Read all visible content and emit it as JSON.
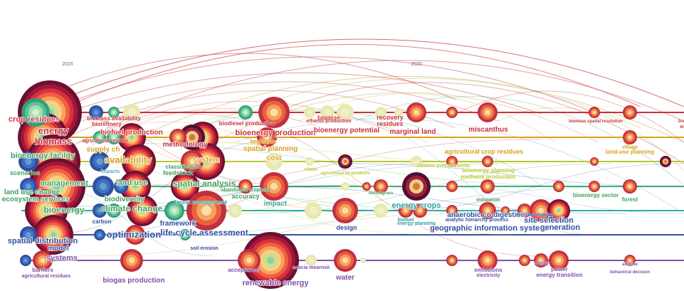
{
  "years": [
    {
      "label": "2015"
    },
    {
      "label": "2020"
    }
  ],
  "lanes": [
    {
      "color": "#c8323c"
    },
    {
      "color": "#e0a020"
    },
    {
      "color": "#b8c830"
    },
    {
      "color": "#40b070"
    },
    {
      "color": "#30b0a0"
    },
    {
      "color": "#3050a0"
    },
    {
      "color": "#8050a8"
    }
  ],
  "keywords": [
    {
      "text": "crop residues",
      "color": "#c8323c"
    },
    {
      "text": "energy",
      "color": "#c8323c"
    },
    {
      "text": "biomass",
      "color": "#c8323c"
    },
    {
      "text": "biomass availability",
      "color": "#c8323c"
    },
    {
      "text": "biorefinery",
      "color": "#c8323c"
    },
    {
      "text": "biofuel production",
      "color": "#c8323c"
    },
    {
      "text": "agricultural residue",
      "color": "#c8323c"
    },
    {
      "text": "supply ch",
      "color": "#d8a020"
    },
    {
      "text": "availability",
      "color": "#d8a020"
    },
    {
      "text": "impacts",
      "color": "#60a0d0"
    },
    {
      "text": "bioenergy facility",
      "color": "#40a060"
    },
    {
      "text": "scenarios",
      "color": "#40a060"
    },
    {
      "text": "management",
      "color": "#40a060"
    },
    {
      "text": "land use change",
      "color": "#40a060"
    },
    {
      "text": "ecosystem services",
      "color": "#40a060"
    },
    {
      "text": "land use",
      "color": "#40a060"
    },
    {
      "text": "biodiversity",
      "color": "#40a060"
    },
    {
      "text": "climate change",
      "color": "#40a060"
    },
    {
      "text": "bioenergy",
      "color": "#40a060"
    },
    {
      "text": "carbon",
      "color": "#3050a0"
    },
    {
      "text": "optimization",
      "color": "#3050a0"
    },
    {
      "text": "spatial distribution",
      "color": "#3050a0"
    },
    {
      "text": "model",
      "color": "#3050a0"
    },
    {
      "text": "systems",
      "color": "#8050a8"
    },
    {
      "text": "barriers",
      "color": "#8050a8"
    },
    {
      "text": "agricultural residues",
      "color": "#8050a8"
    },
    {
      "text": "methodology",
      "color": "#c8323c"
    },
    {
      "text": "system",
      "color": "#d8a020"
    },
    {
      "text": "classification",
      "color": "#40a060"
    },
    {
      "text": "feedstock",
      "color": "#40a060"
    },
    {
      "text": "spatial analysis",
      "color": "#40a060"
    },
    {
      "text": "forest management",
      "color": "#30a0a0"
    },
    {
      "text": "framework",
      "color": "#3050a0"
    },
    {
      "text": "life-cycle assessment",
      "color": "#3050a0"
    },
    {
      "text": "soil erosion",
      "color": "#3050a0"
    },
    {
      "text": "biogas production",
      "color": "#8050a8"
    },
    {
      "text": "biodiesel production",
      "color": "#c8323c"
    },
    {
      "text": "bioenergy production",
      "color": "#c8323c"
    },
    {
      "text": "logistics",
      "color": "#d8a020"
    },
    {
      "text": "spatial planning",
      "color": "#d8a020"
    },
    {
      "text": "cost",
      "color": "#d8a020"
    },
    {
      "text": "abandoned cropland",
      "color": "#40a060"
    },
    {
      "text": "accuracy",
      "color": "#40a060"
    },
    {
      "text": "impact",
      "color": "#30a0a0"
    },
    {
      "text": "acceptance",
      "color": "#8050a8"
    },
    {
      "text": "renewable energy",
      "color": "#8050a8"
    },
    {
      "text": "acacia mearnsii",
      "color": "#8050a8"
    },
    {
      "text": "water",
      "color": "#8050a8"
    },
    {
      "text": "bagasse",
      "color": "#c8323c"
    },
    {
      "text": "ethanol production",
      "color": "#c8323c"
    },
    {
      "text": "bioenergy potential",
      "color": "#c8323c"
    },
    {
      "text": "chain",
      "color": "#b8c830"
    },
    {
      "text": "agricultural by-products",
      "color": "#b8c830"
    },
    {
      "text": "switchgrass",
      "color": "#40a060"
    },
    {
      "text": "design",
      "color": "#3050a0"
    },
    {
      "text": "recovery",
      "color": "#c8323c"
    },
    {
      "text": "residues",
      "color": "#c8323c"
    },
    {
      "text": "marginal land",
      "color": "#c8323c"
    },
    {
      "text": "alkaline pretreatments",
      "color": "#b8c830"
    },
    {
      "text": "energy crops",
      "color": "#30a0a0"
    },
    {
      "text": "biofuel",
      "color": "#30a0a0"
    },
    {
      "text": "energy planning",
      "color": "#30a0a0"
    },
    {
      "text": "miscanthus",
      "color": "#c8323c"
    },
    {
      "text": "agricultural crop residues",
      "color": "#d8a020"
    },
    {
      "text": "bioenergy planning",
      "color": "#b8c830"
    },
    {
      "text": "methane production",
      "color": "#b8c830"
    },
    {
      "text": "mitigation",
      "color": "#40a060"
    },
    {
      "text": "anaerobic co-digestion",
      "color": "#3050a0"
    },
    {
      "text": "analytic hierarchy process",
      "color": "#3050a0"
    },
    {
      "text": "geographic information system",
      "color": "#3050a0"
    },
    {
      "text": "emissions",
      "color": "#8050a8"
    },
    {
      "text": "electricity",
      "color": "#8050a8"
    },
    {
      "text": "decision making",
      "color": "#3050a0"
    },
    {
      "text": "site selection",
      "color": "#3050a0"
    },
    {
      "text": "generation",
      "color": "#3050a0"
    },
    {
      "text": "policy",
      "color": "#8050a8"
    },
    {
      "text": "power",
      "color": "#8050a8"
    },
    {
      "text": "energy transition",
      "color": "#8050a8"
    },
    {
      "text": "biomass spatial resolution",
      "color": "#c8323c"
    },
    {
      "text": "village",
      "color": "#d8a020"
    },
    {
      "text": "land-use planning",
      "color": "#d8a020"
    },
    {
      "text": "bioenergy sector",
      "color": "#40a060"
    },
    {
      "text": "forest",
      "color": "#40a060"
    },
    {
      "text": "attitude",
      "color": "#8050a8"
    },
    {
      "text": "behavioral decision",
      "color": "#8050a8"
    },
    {
      "text": "2nd",
      "color": "#c8323c"
    },
    {
      "text": "bi",
      "color": "#c8323c"
    }
  ]
}
